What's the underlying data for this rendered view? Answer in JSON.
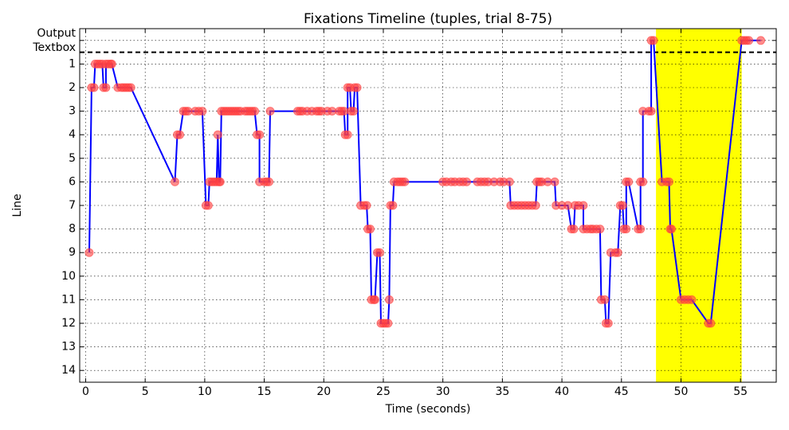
{
  "chart_data": {
    "type": "line",
    "title": "Fixations Timeline (tuples, trial 8-75)",
    "x_label": "Time (seconds)",
    "y_label": "Line",
    "x": [
      0.3,
      0.5,
      0.7,
      0.8,
      1.0,
      1.2,
      1.4,
      1.5,
      1.7,
      1.7,
      1.9,
      2.1,
      2.2,
      2.7,
      3.0,
      3.2,
      3.4,
      3.6,
      3.8,
      7.5,
      7.7,
      7.9,
      8.2,
      8.4,
      8.6,
      9.2,
      9.5,
      9.8,
      10.1,
      10.3,
      10.4,
      10.6,
      10.8,
      11.0,
      11.1,
      11.2,
      11.3,
      11.4,
      11.6,
      11.8,
      12.0,
      12.2,
      12.4,
      12.6,
      12.8,
      13.0,
      13.4,
      13.6,
      13.8,
      14.0,
      14.2,
      14.4,
      14.6,
      14.6,
      15.0,
      15.2,
      15.4,
      15.5,
      17.8,
      18.0,
      18.2,
      18.6,
      19.0,
      19.4,
      19.6,
      19.8,
      20.3,
      20.7,
      21.3,
      21.5,
      21.7,
      21.8,
      22.0,
      22.0,
      22.2,
      22.3,
      22.5,
      22.6,
      22.8,
      23.1,
      23.4,
      23.6,
      23.7,
      23.9,
      24.0,
      24.2,
      24.3,
      24.5,
      24.7,
      24.8,
      25.0,
      25.2,
      25.4,
      25.5,
      25.6,
      25.8,
      25.9,
      26.2,
      26.4,
      26.6,
      26.8,
      30.0,
      30.3,
      30.7,
      31.0,
      31.4,
      31.7,
      32.0,
      32.9,
      33.2,
      33.5,
      33.8,
      34.3,
      34.8,
      35.1,
      35.6,
      35.7,
      36.0,
      36.3,
      36.6,
      36.9,
      37.2,
      37.5,
      37.8,
      37.9,
      38.1,
      38.3,
      38.8,
      39.4,
      39.5,
      40.0,
      40.5,
      40.8,
      41.0,
      41.1,
      41.4,
      41.8,
      41.8,
      42.1,
      42.4,
      42.6,
      42.9,
      43.2,
      43.3,
      43.6,
      43.7,
      43.9,
      44.1,
      44.5,
      44.7,
      44.9,
      45.1,
      45.2,
      45.4,
      45.4,
      45.6,
      46.4,
      46.6,
      46.6,
      46.8,
      46.8,
      47.3,
      47.5,
      47.5,
      47.7,
      48.4,
      48.8,
      49.0,
      49.1,
      49.2,
      50.0,
      50.3,
      50.6,
      50.9,
      52.3,
      52.5,
      55.1,
      55.3,
      55.5,
      55.7,
      56.7
    ],
    "values": [
      9,
      2,
      2,
      1,
      1,
      1,
      1,
      2,
      2,
      1,
      1,
      1,
      1,
      2,
      2,
      2,
      2,
      2,
      2,
      6,
      4,
      4,
      3,
      3,
      3,
      3,
      3,
      3,
      7,
      7,
      6,
      6,
      6,
      6,
      4,
      6,
      6,
      3,
      3,
      3,
      3,
      3,
      3,
      3,
      3,
      3,
      3,
      3,
      3,
      3,
      3,
      4,
      4,
      6,
      6,
      6,
      6,
      3,
      3,
      3,
      3,
      3,
      3,
      3,
      3,
      3,
      3,
      3,
      3,
      3,
      3,
      4,
      4,
      2,
      2,
      3,
      3,
      2,
      2,
      7,
      7,
      7,
      8,
      8,
      11,
      11,
      11,
      9,
      9,
      12,
      12,
      12,
      12,
      11,
      7,
      7,
      6,
      6,
      6,
      6,
      6,
      6,
      6,
      6,
      6,
      6,
      6,
      6,
      6,
      6,
      6,
      6,
      6,
      6,
      6,
      6,
      7,
      7,
      7,
      7,
      7,
      7,
      7,
      7,
      6,
      6,
      6,
      6,
      6,
      7,
      7,
      7,
      8,
      8,
      7,
      7,
      7,
      8,
      8,
      8,
      8,
      8,
      8,
      11,
      11,
      12,
      12,
      9,
      9,
      9,
      7,
      7,
      8,
      8,
      6,
      6,
      8,
      8,
      6,
      6,
      3,
      3,
      3,
      0,
      0,
      6,
      6,
      6,
      8,
      8,
      11,
      11,
      11,
      11,
      12,
      12,
      0,
      0,
      0,
      0,
      0
    ],
    "color": "#0000ff",
    "marker_color": "#ff4040",
    "highlight_span": [
      47.9,
      55.1
    ],
    "highlight_color": "#ffff00",
    "hline": 0.5,
    "xlim": [
      -0.5,
      58
    ],
    "ylim": [
      14.5,
      -0.5
    ],
    "xticks": [
      0,
      5,
      10,
      15,
      20,
      25,
      30,
      35,
      40,
      45,
      50,
      55
    ],
    "yticks": [
      {
        "value": 0,
        "label": "Output\nTextbox"
      },
      1,
      2,
      3,
      4,
      5,
      6,
      7,
      8,
      9,
      10,
      11,
      12,
      13,
      14
    ],
    "grid": true
  }
}
